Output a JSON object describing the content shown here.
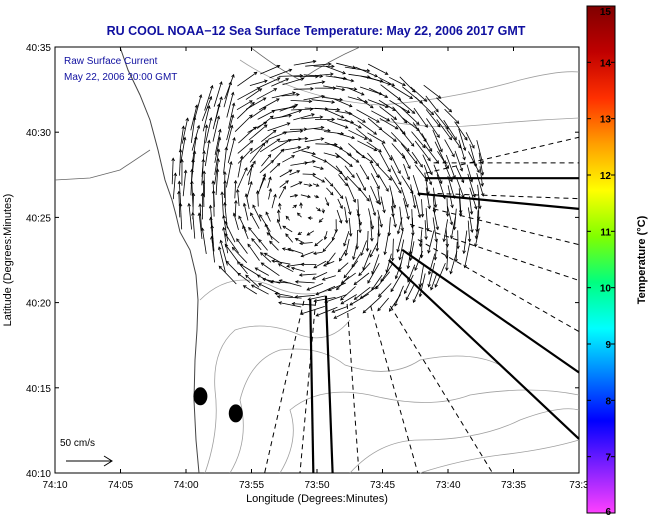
{
  "chart_data": {
    "type": "vector_field_map",
    "title": "RU COOL   NOAA−12  Sea Surface Temperature:  May 22, 2006 2017 GMT",
    "subtitle_line1": "Raw Surface Current",
    "subtitle_line2": "May 22, 2006 20:00 GMT",
    "xlabel": "Longitude (Degrees:Minutes)",
    "ylabel": "Latitude (Degrees:Minutes)",
    "x_ticks": [
      "74:10",
      "74:05",
      "74:00",
      "73:55",
      "73:50",
      "73:45",
      "73:40",
      "73:35",
      "73:3"
    ],
    "y_ticks": [
      "40:10",
      "40:15",
      "40:20",
      "40:25",
      "40:30",
      "40:35"
    ],
    "xlim": [
      -74.1667,
      -73.5
    ],
    "ylim": [
      40.1667,
      40.5833
    ],
    "scale_label": "50 cm/s",
    "colorbar": {
      "label": "Temperature (°C)",
      "ticks": [
        "6",
        "7",
        "8",
        "9",
        "10",
        "11",
        "12",
        "13",
        "14",
        "15"
      ],
      "range": [
        6,
        15
      ],
      "colors": [
        "#ff40ff",
        "#8020ff",
        "#0000ff",
        "#0080ff",
        "#00ffff",
        "#00ff80",
        "#80ff00",
        "#ffff00",
        "#ffa000",
        "#ff3000",
        "#c00000",
        "#800000"
      ]
    },
    "eddy_centers": [
      {
        "lon": -73.86,
        "lat": 40.445
      },
      {
        "lon": -73.83,
        "lat": 40.385
      }
    ],
    "markers": [
      {
        "lon": -73.9817,
        "lat": 40.2417
      },
      {
        "lon": -73.9367,
        "lat": 40.225
      }
    ],
    "range_lines_solid": [
      [
        [
          -73.695,
          40.455
        ],
        [
          -73.5,
          40.455
        ]
      ],
      [
        [
          -73.705,
          40.44
        ],
        [
          -73.5,
          40.425
        ]
      ],
      [
        [
          -73.725,
          40.385
        ],
        [
          -73.5,
          40.265
        ]
      ],
      [
        [
          -73.742,
          40.375
        ],
        [
          -73.5,
          40.2
        ]
      ],
      [
        [
          -73.822,
          40.34
        ],
        [
          -73.8135,
          40.1667
        ]
      ],
      [
        [
          -73.842,
          40.337
        ],
        [
          -73.838,
          40.1667
        ]
      ]
    ],
    "range_lines_dashed": [
      [
        [
          -73.695,
          40.46
        ],
        [
          -73.5,
          40.495
        ]
      ],
      [
        [
          -73.705,
          40.395
        ],
        [
          -73.5,
          40.305
        ]
      ],
      [
        [
          -73.715,
          40.41
        ],
        [
          -73.5,
          40.355
        ]
      ],
      [
        [
          -73.685,
          40.425
        ],
        [
          -73.5,
          40.39
        ]
      ],
      [
        [
          -73.68,
          40.44
        ],
        [
          -73.5,
          40.435
        ]
      ],
      [
        [
          -73.685,
          40.47
        ],
        [
          -73.5,
          40.47
        ]
      ],
      [
        [
          -73.74,
          40.33
        ],
        [
          -73.61,
          40.1667
        ]
      ],
      [
        [
          -73.765,
          40.33
        ],
        [
          -73.705,
          40.1667
        ]
      ],
      [
        [
          -73.795,
          40.332
        ],
        [
          -73.78,
          40.1667
        ]
      ],
      [
        [
          -73.85,
          40.335
        ],
        [
          -73.9,
          40.1667
        ]
      ],
      [
        [
          -73.835,
          40.335
        ],
        [
          -73.855,
          40.1667
        ]
      ]
    ]
  }
}
